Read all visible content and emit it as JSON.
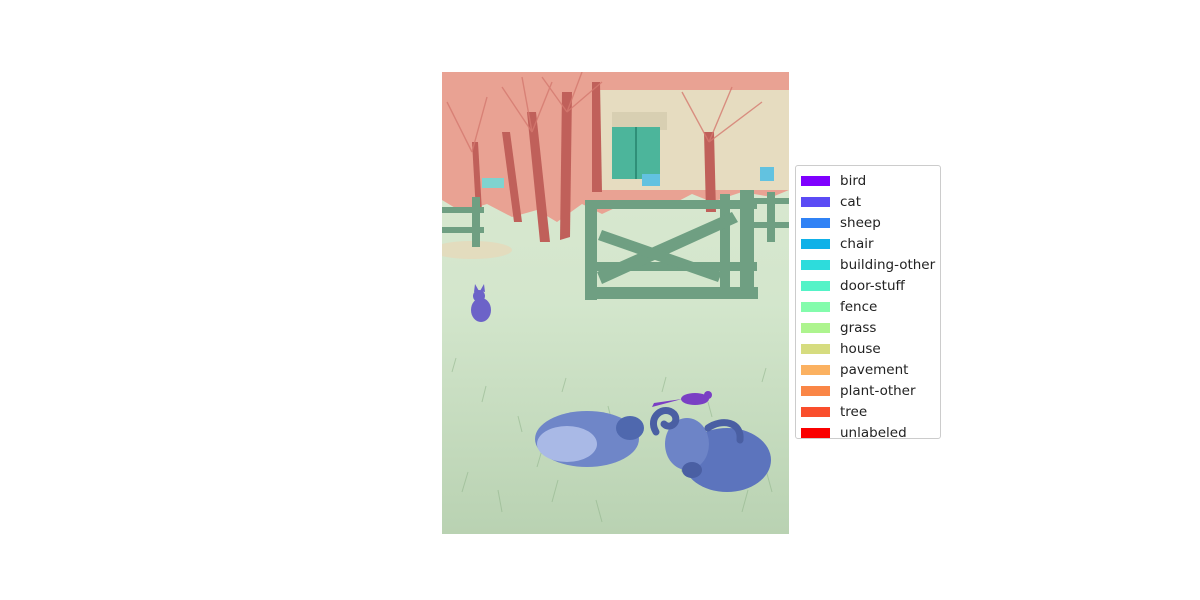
{
  "figure": {
    "legend": {
      "items": [
        {
          "label": "bird",
          "color": "#7f00ff"
        },
        {
          "label": "cat",
          "color": "#5b4bf5"
        },
        {
          "label": "sheep",
          "color": "#3082f5"
        },
        {
          "label": "chair",
          "color": "#0fb1e8"
        },
        {
          "label": "building-other",
          "color": "#2ddcdc"
        },
        {
          "label": "door-stuff",
          "color": "#54f3c7"
        },
        {
          "label": "fence",
          "color": "#83fcac"
        },
        {
          "label": "grass",
          "color": "#adf48e"
        },
        {
          "label": "house",
          "color": "#d6dc7f"
        },
        {
          "label": "pavement",
          "color": "#fbb161"
        },
        {
          "label": "plant-other",
          "color": "#fa8646"
        },
        {
          "label": "tree",
          "color": "#fa4e2c"
        },
        {
          "label": "unlabeled",
          "color": "#fa0000"
        }
      ]
    }
  }
}
